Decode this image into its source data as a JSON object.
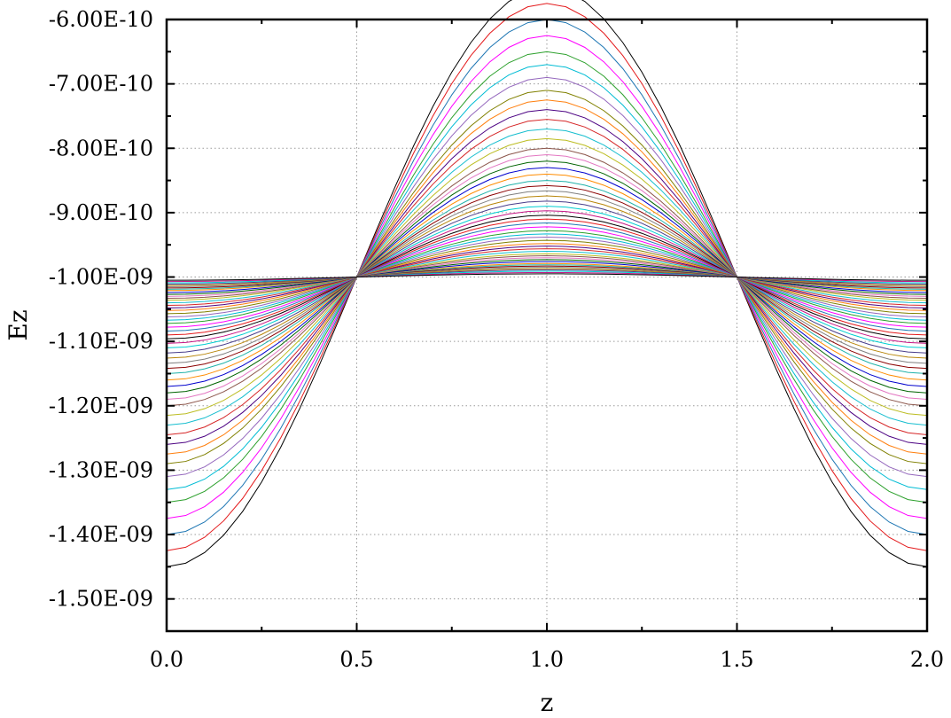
{
  "chart_data": {
    "type": "line",
    "title": "",
    "xlabel": "z",
    "ylabel": "Ez",
    "xlim": [
      0.0,
      2.0
    ],
    "ylim": [
      -1.55e-09,
      -6e-10
    ],
    "x_ticks": [
      0.0,
      0.5,
      1.0,
      1.5,
      2.0
    ],
    "x_tick_labels": [
      "0.0",
      "0.5",
      "1.0",
      "1.5",
      "2.0"
    ],
    "y_ticks": [
      -6e-10,
      -7e-10,
      -8e-10,
      -9e-10,
      -1e-09,
      -1.1e-09,
      -1.2e-09,
      -1.3e-09,
      -1.4e-09,
      -1.5e-09
    ],
    "y_tick_labels": [
      "-6.00E-10",
      "-7.00E-10",
      "-8.00E-10",
      "-9.00E-10",
      "-1.00E-09",
      "-1.10E-09",
      "-1.20E-09",
      "-1.30E-09",
      "-1.40E-09",
      "-1.50E-09"
    ],
    "grid": true,
    "legend": "none",
    "x": [
      0.0,
      0.05,
      0.1,
      0.15,
      0.2,
      0.25,
      0.3,
      0.35,
      0.4,
      0.45,
      0.5,
      0.55,
      0.6,
      0.65,
      0.7,
      0.75,
      0.8,
      0.85,
      0.9,
      0.95,
      1.0,
      1.05,
      1.1,
      1.15,
      1.2,
      1.25,
      1.3,
      1.35,
      1.4,
      1.45,
      1.5,
      1.55,
      1.6,
      1.65,
      1.7,
      1.75,
      1.8,
      1.85,
      1.9,
      1.95,
      2.0
    ],
    "series_model": {
      "description": "Family of curves Ez(z) = -1.00E-09 - A * cos(pi * z); amplitude A per curve",
      "baseline": -1e-09,
      "amplitudes": [
        4.5e-10,
        4.25e-10,
        4e-10,
        3.75e-10,
        3.5e-10,
        3.3e-10,
        3.1e-10,
        2.9e-10,
        2.75e-10,
        2.6e-10,
        2.45e-10,
        2.3e-10,
        2.15e-10,
        2e-10,
        1.9e-10,
        1.8e-10,
        1.7e-10,
        1.6e-10,
        1.5e-10,
        1.42e-10,
        1.34e-10,
        1.26e-10,
        1.18e-10,
        1.1e-10,
        1.03e-10,
        9.6e-11,
        9e-11,
        8.4e-11,
        7.8e-11,
        7.2e-11,
        6.7e-11,
        6.2e-11,
        5.7e-11,
        5.2e-11,
        4.8e-11,
        4.4e-11,
        4e-11,
        3.6e-11,
        3.3e-11,
        3e-11,
        2.7e-11,
        2.4e-11,
        2.1e-11,
        1.9e-11,
        1.7e-11,
        1.5e-11,
        1.3e-11,
        1.1e-11,
        9e-12,
        7e-12,
        5e-12
      ],
      "crossing_z": [
        0.5,
        1.5
      ]
    },
    "colors": [
      "#000000",
      "#e41a1c",
      "#1f77b4",
      "#ff00ff",
      "#2ca02c",
      "#00bcd4",
      "#9467bd",
      "#808000",
      "#ff7f0e",
      "#4b0082",
      "#d62728",
      "#17becf",
      "#bcbd22",
      "#8c564b",
      "#e377c2",
      "#006400",
      "#0000cd",
      "#ff8c00",
      "#20b2aa",
      "#8b0000",
      "#7f7f7f",
      "#b8860b",
      "#483d8b",
      "#00ced1",
      "#c71585"
    ]
  }
}
